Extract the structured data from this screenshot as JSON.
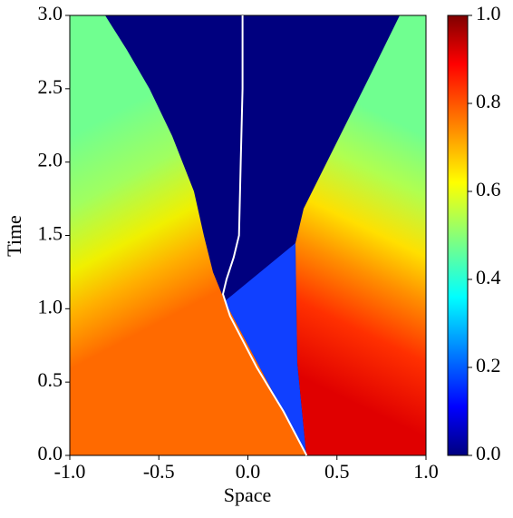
{
  "chart_data": {
    "type": "heatmap",
    "x_label": "Space",
    "y_label": "Time",
    "xlim": [
      -1,
      1
    ],
    "ylim": [
      0,
      3
    ],
    "clim": [
      0,
      1
    ],
    "xticks": [
      {
        "value": -1,
        "label": "-1.0"
      },
      {
        "value": -0.5,
        "label": "-0.5"
      },
      {
        "value": 0,
        "label": "0.0"
      },
      {
        "value": 0.5,
        "label": "0.5"
      },
      {
        "value": 1,
        "label": "1.0"
      }
    ],
    "yticks": [
      {
        "value": 0,
        "label": "0.0"
      },
      {
        "value": 0.5,
        "label": "0.5"
      },
      {
        "value": 1,
        "label": "1.0"
      },
      {
        "value": 1.5,
        "label": "1.5"
      },
      {
        "value": 2,
        "label": "2.0"
      },
      {
        "value": 2.5,
        "label": "2.5"
      },
      {
        "value": 3,
        "label": "3.0"
      }
    ],
    "cticks": [
      {
        "value": 0,
        "label": "0.0"
      },
      {
        "value": 0.2,
        "label": "0.2"
      },
      {
        "value": 0.4,
        "label": "0.4"
      },
      {
        "value": 0.6,
        "label": "0.6"
      },
      {
        "value": 0.8,
        "label": "0.8"
      },
      {
        "value": 1,
        "label": "1.0"
      }
    ],
    "colormap": "jet",
    "curve": {
      "color": "#ffffff",
      "x": [
        0.33,
        0.2,
        0.05,
        -0.1,
        -0.14,
        -0.12,
        -0.08,
        -0.05,
        -0.04,
        -0.03,
        -0.03
      ],
      "y": [
        0,
        0.3,
        0.6,
        0.95,
        1.1,
        1.2,
        1.35,
        1.5,
        2.0,
        2.5,
        3.0
      ]
    }
  }
}
